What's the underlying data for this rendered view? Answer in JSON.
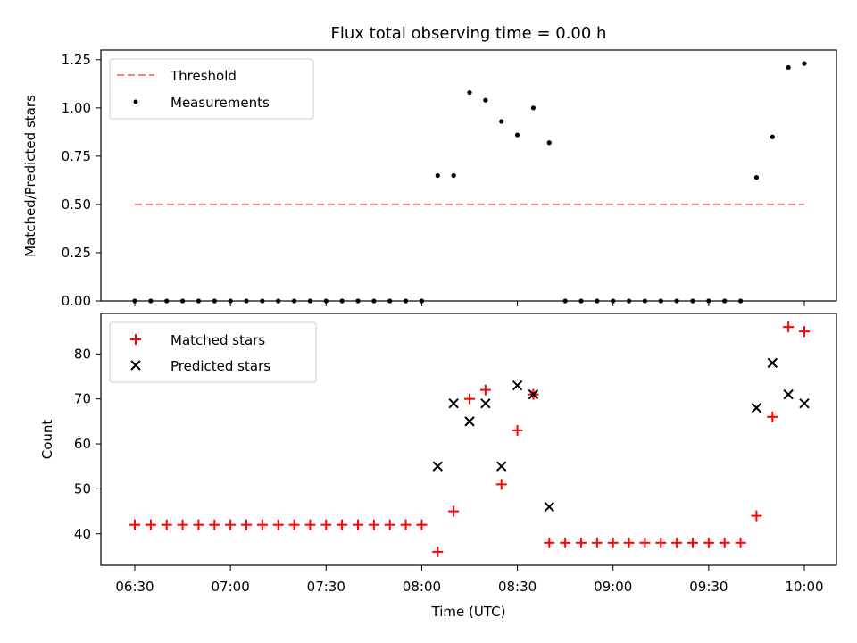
{
  "chart_data": [
    {
      "type": "scatter",
      "title": "Flux total observing time = 0.00 h",
      "xlabel": "",
      "ylabel": "Matched/Predicted stars",
      "ylim": [
        0,
        1.3
      ],
      "yticks": [
        "0.00",
        "0.25",
        "0.50",
        "0.75",
        "1.00",
        "1.25"
      ],
      "ytick_values": [
        0,
        0.25,
        0.5,
        0.75,
        1.0,
        1.25
      ],
      "legend_position": "top-left",
      "threshold": {
        "name": "Threshold",
        "value": 0.5,
        "x_start": "06:30",
        "x_end": "10:00",
        "color": "#ff7f7f"
      },
      "series": [
        {
          "name": "Measurements",
          "color": "#000000",
          "x": [
            "06:30",
            "06:35",
            "06:40",
            "06:45",
            "06:50",
            "06:55",
            "07:00",
            "07:05",
            "07:10",
            "07:15",
            "07:20",
            "07:25",
            "07:30",
            "07:35",
            "07:40",
            "07:45",
            "07:50",
            "07:55",
            "08:00",
            "08:05",
            "08:10",
            "08:15",
            "08:20",
            "08:25",
            "08:30",
            "08:35",
            "08:40",
            "08:45",
            "08:50",
            "08:55",
            "09:00",
            "09:05",
            "09:10",
            "09:15",
            "09:20",
            "09:25",
            "09:30",
            "09:35",
            "09:40",
            "09:45",
            "09:50",
            "09:55",
            "10:00"
          ],
          "y": [
            0,
            0,
            0,
            0,
            0,
            0,
            0,
            0,
            0,
            0,
            0,
            0,
            0,
            0,
            0,
            0,
            0,
            0,
            0,
            0.65,
            0.65,
            1.08,
            1.04,
            0.93,
            0.86,
            1.0,
            0.82,
            0,
            0,
            0,
            0,
            0,
            0,
            0,
            0,
            0,
            0,
            0,
            0,
            0.64,
            0.85,
            1.21,
            1.23
          ]
        }
      ]
    },
    {
      "type": "scatter",
      "title": "",
      "xlabel": "Time (UTC)",
      "ylabel": "Count",
      "ylim": [
        33,
        89
      ],
      "yticks": [
        "40",
        "50",
        "60",
        "70",
        "80"
      ],
      "ytick_values": [
        40,
        50,
        60,
        70,
        80
      ],
      "xticks": [
        "06:30",
        "07:00",
        "07:30",
        "08:00",
        "08:30",
        "09:00",
        "09:30",
        "10:00"
      ],
      "legend_position": "top-left",
      "series": [
        {
          "name": "Matched stars",
          "marker": "plus",
          "color": "#ff0000",
          "x": [
            "06:30",
            "06:35",
            "06:40",
            "06:45",
            "06:50",
            "06:55",
            "07:00",
            "07:05",
            "07:10",
            "07:15",
            "07:20",
            "07:25",
            "07:30",
            "07:35",
            "07:40",
            "07:45",
            "07:50",
            "07:55",
            "08:00",
            "08:05",
            "08:10",
            "08:15",
            "08:20",
            "08:25",
            "08:30",
            "08:35",
            "08:40",
            "08:45",
            "08:50",
            "08:55",
            "09:00",
            "09:05",
            "09:10",
            "09:15",
            "09:20",
            "09:25",
            "09:30",
            "09:35",
            "09:40",
            "09:45",
            "09:50",
            "09:55",
            "10:00"
          ],
          "y": [
            42,
            42,
            42,
            42,
            42,
            42,
            42,
            42,
            42,
            42,
            42,
            42,
            42,
            42,
            42,
            42,
            42,
            42,
            42,
            36,
            45,
            70,
            72,
            51,
            63,
            71,
            38,
            38,
            38,
            38,
            38,
            38,
            38,
            38,
            38,
            38,
            38,
            38,
            38,
            44,
            66,
            86,
            85
          ]
        },
        {
          "name": "Predicted stars",
          "marker": "x",
          "color": "#000000",
          "x": [
            "08:05",
            "08:10",
            "08:15",
            "08:20",
            "08:25",
            "08:30",
            "08:35",
            "08:40",
            "09:45",
            "09:50",
            "09:55",
            "10:00"
          ],
          "y": [
            55,
            69,
            65,
            69,
            55,
            73,
            71,
            46,
            68,
            78,
            71,
            69
          ]
        }
      ]
    }
  ]
}
